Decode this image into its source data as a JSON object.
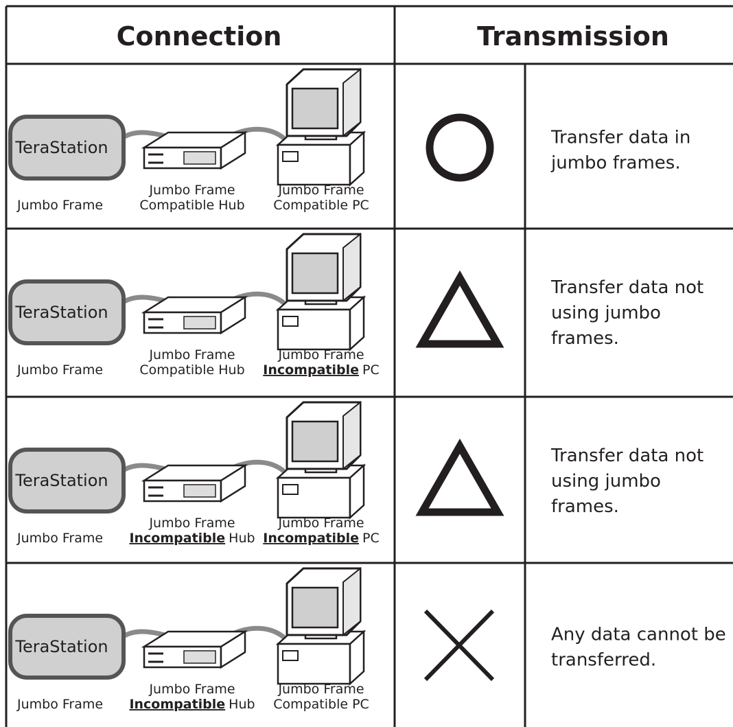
{
  "header": {
    "connection": "Connection",
    "transmission": "Transmission"
  },
  "rows": [
    {
      "device": "TeraStation",
      "device_label": "Jumbo Frame",
      "hub": {
        "line1": "Jumbo Frame",
        "line2": "Compatible Hub"
      },
      "pc": {
        "line1": "Jumbo Frame",
        "line2": "Compatible PC"
      },
      "description": [
        "Transfer data in",
        "jumbo frames."
      ]
    },
    {
      "device": "TeraStation",
      "device_label": "Jumbo Frame",
      "hub": {
        "line1": "Jumbo Frame",
        "line2": "Compatible Hub"
      },
      "pc": {
        "line1": "Jumbo Frame",
        "emphasis": "Incompatible",
        "line2": "PC"
      },
      "description": [
        "Transfer data not",
        "using jumbo",
        "frames."
      ]
    },
    {
      "device": "TeraStation",
      "device_label": "Jumbo Frame",
      "hub": {
        "line1": "Jumbo Frame",
        "emphasis": "Incompatible",
        "line2": "Hub"
      },
      "pc": {
        "line1": "Jumbo Frame",
        "emphasis": "Incompatible",
        "line2": "PC"
      },
      "description": [
        "Transfer data not",
        "using jumbo",
        "frames."
      ]
    },
    {
      "device": "TeraStation",
      "device_label": "Jumbo Frame",
      "hub": {
        "line1": "Jumbo Frame",
        "emphasis": "Incompatible",
        "line2": "Hub"
      },
      "pc": {
        "line1": "Jumbo Frame",
        "line2": "Compatible PC"
      },
      "description": [
        "Any data cannot be",
        "transferred."
      ]
    }
  ]
}
